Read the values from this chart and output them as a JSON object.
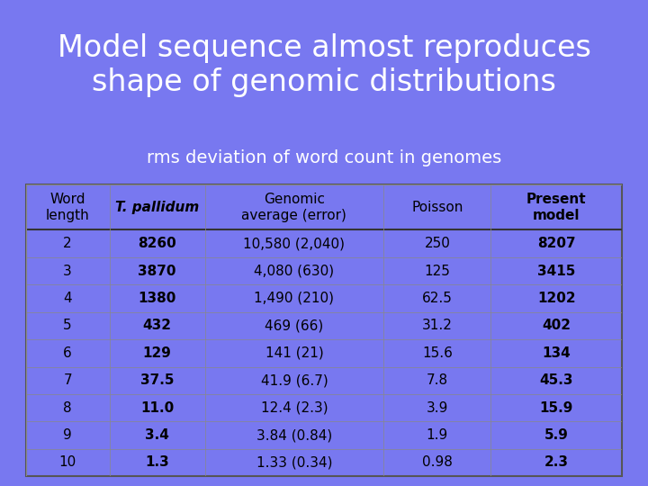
{
  "title": "Model sequence almost reproduces\nshape of genomic distributions",
  "subtitle": "rms deviation of word count in genomes",
  "title_bg": "#7878f0",
  "subtitle_bg": "#4040c0",
  "table_bg": "#ffffff",
  "header_bg": "#ffffff",
  "col_headers": [
    "Word\nlength",
    "T. pallidum",
    "Genomic\naverage (error)",
    "Poisson",
    "Present\nmodel"
  ],
  "rows": [
    [
      "2",
      "8260",
      "10,580 (2,040)",
      "250",
      "8207"
    ],
    [
      "3",
      "3870",
      "4,080 (630)",
      "125",
      "3415"
    ],
    [
      "4",
      "1380",
      "1,490 (210)",
      "62.5",
      "1202"
    ],
    [
      "5",
      "432",
      "469 (66)",
      "31.2",
      "402"
    ],
    [
      "6",
      "129",
      "141 (21)",
      "15.6",
      "134"
    ],
    [
      "7",
      "37.5",
      "41.9 (6.7)",
      "7.8",
      "45.3"
    ],
    [
      "8",
      "11.0",
      "12.4 (2.3)",
      "3.9",
      "15.9"
    ],
    [
      "9",
      "3.4",
      "3.84 (0.84)",
      "1.9",
      "5.9"
    ],
    [
      "10",
      "1.3",
      "1.33 (0.34)",
      "0.98",
      "2.3"
    ]
  ],
  "bold_cols": [
    1,
    4
  ],
  "italic_col": 1,
  "outer_bg": "#e8e8e8"
}
